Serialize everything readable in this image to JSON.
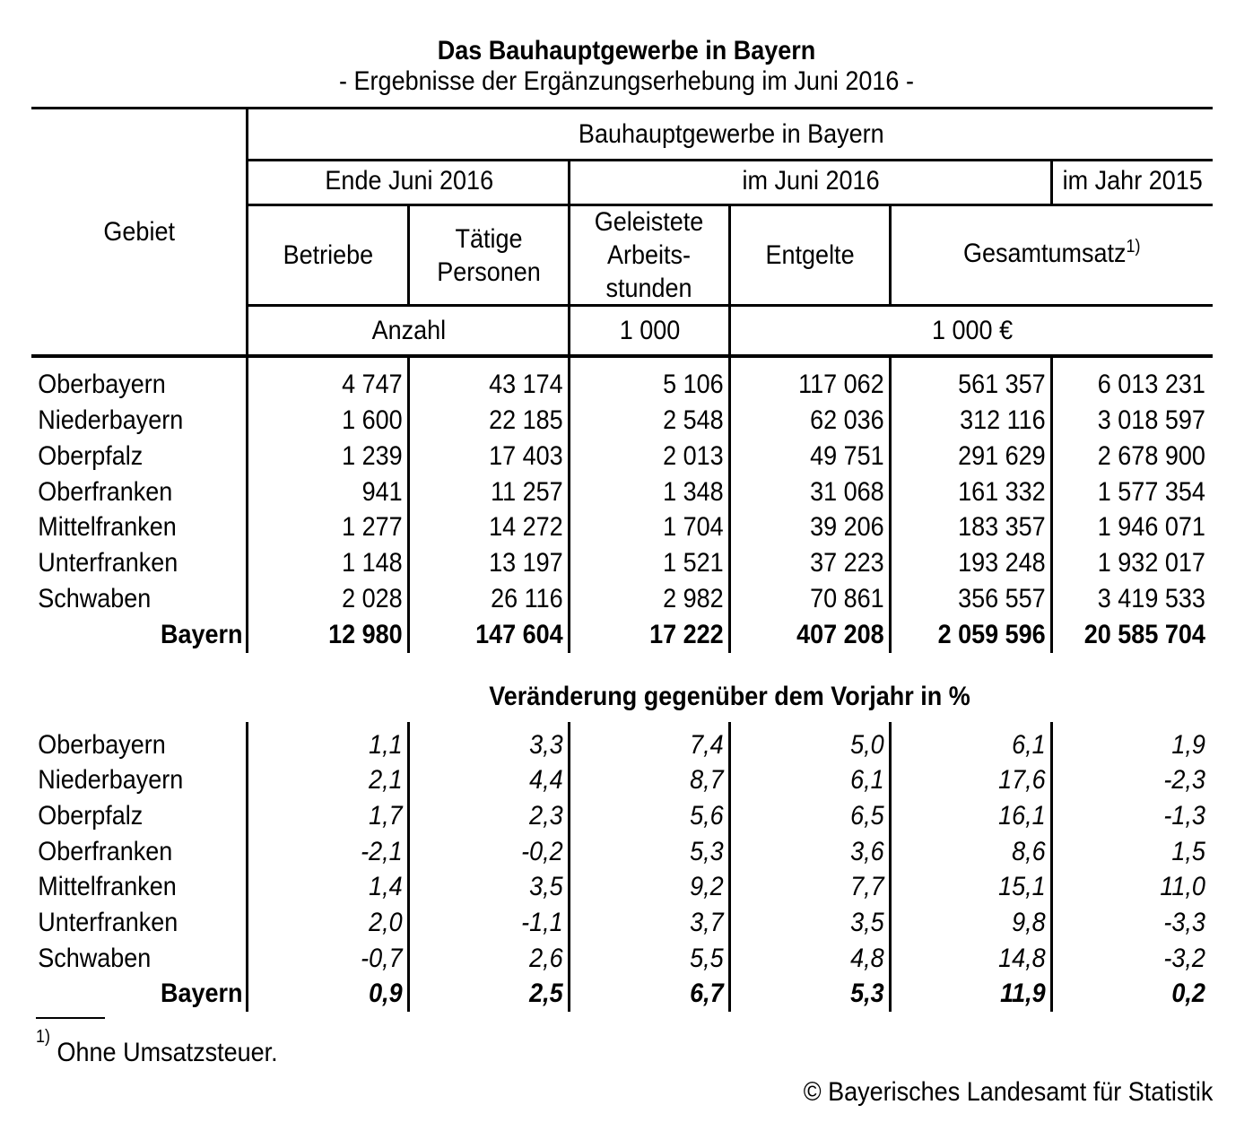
{
  "title": "Das Bauhauptgewerbe in Bayern",
  "subtitle": "- Ergebnisse der Ergänzungserhebung im Juni 2016 -",
  "header": {
    "gebiet": "Gebiet",
    "group_title": "Bauhauptgewerbe in Bayern",
    "period_end_june": "Ende Juni 2016",
    "period_in_june": "im Juni 2016",
    "period_year_2015": "im Jahr 2015",
    "col_betriebe": "Betriebe",
    "col_taetige_personen": "Tätige Personen",
    "col_arbeitsstunden_l1": "Geleistete",
    "col_arbeitsstunden_l2": "Arbeits-",
    "col_arbeitsstunden_l3": "stunden",
    "col_entgelte": "Entgelte",
    "col_gesamtumsatz": "Gesamtumsatz",
    "footnote_marker": "1)",
    "unit_anzahl": "Anzahl",
    "unit_tausend": "1 000",
    "unit_tausend_euro": "1 000 €"
  },
  "absolute_block": {
    "rows": [
      {
        "region": "Oberbayern",
        "values": [
          "4 747",
          "43 174",
          "5 106",
          "117 062",
          "561 357",
          "6 013 231"
        ]
      },
      {
        "region": "Niederbayern",
        "values": [
          "1 600",
          "22 185",
          "2 548",
          "62 036",
          "312 116",
          "3 018 597"
        ]
      },
      {
        "region": "Oberpfalz",
        "values": [
          "1 239",
          "17 403",
          "2 013",
          "49 751",
          "291 629",
          "2 678 900"
        ]
      },
      {
        "region": "Oberfranken",
        "values": [
          "941",
          "11 257",
          "1 348",
          "31 068",
          "161 332",
          "1 577 354"
        ]
      },
      {
        "region": "Mittelfranken",
        "values": [
          "1 277",
          "14 272",
          "1 704",
          "39 206",
          "183 357",
          "1 946 071"
        ]
      },
      {
        "region": "Unterfranken",
        "values": [
          "1 148",
          "13 197",
          "1 521",
          "37 223",
          "193 248",
          "1 932 017"
        ]
      },
      {
        "region": "Schwaben",
        "values": [
          "2 028",
          "26 116",
          "2 982",
          "70 861",
          "356 557",
          "3 419 533"
        ]
      },
      {
        "region": "Bayern",
        "values": [
          "12 980",
          "147 604",
          "17 222",
          "407 208",
          "2 059 596",
          "20 585 704"
        ],
        "bold": true
      }
    ]
  },
  "change_block": {
    "title": "Veränderung gegenüber dem Vorjahr in %",
    "rows": [
      {
        "region": "Oberbayern",
        "values": [
          "1,1",
          "3,3",
          "7,4",
          "5,0",
          "6,1",
          "1,9"
        ]
      },
      {
        "region": "Niederbayern",
        "values": [
          "2,1",
          "4,4",
          "8,7",
          "6,1",
          "17,6",
          "-2,3"
        ]
      },
      {
        "region": "Oberpfalz",
        "values": [
          "1,7",
          "2,3",
          "5,6",
          "6,5",
          "16,1",
          "-1,3"
        ]
      },
      {
        "region": "Oberfranken",
        "values": [
          "-2,1",
          "-0,2",
          "5,3",
          "3,6",
          "8,6",
          "1,5"
        ]
      },
      {
        "region": "Mittelfranken",
        "values": [
          "1,4",
          "3,5",
          "9,2",
          "7,7",
          "15,1",
          "11,0"
        ]
      },
      {
        "region": "Unterfranken",
        "values": [
          "2,0",
          "-1,1",
          "3,7",
          "3,5",
          "9,8",
          "-3,3"
        ]
      },
      {
        "region": "Schwaben",
        "values": [
          "-0,7",
          "2,6",
          "5,5",
          "4,8",
          "14,8",
          "-3,2"
        ]
      },
      {
        "region": "Bayern",
        "values": [
          "0,9",
          "2,5",
          "6,7",
          "5,3",
          "11,9",
          "0,2"
        ],
        "bold": true
      }
    ]
  },
  "footnote": {
    "marker": "1)",
    "text": "Ohne Umsatzsteuer."
  },
  "copyright": "© Bayerisches Landesamt für Statistik"
}
